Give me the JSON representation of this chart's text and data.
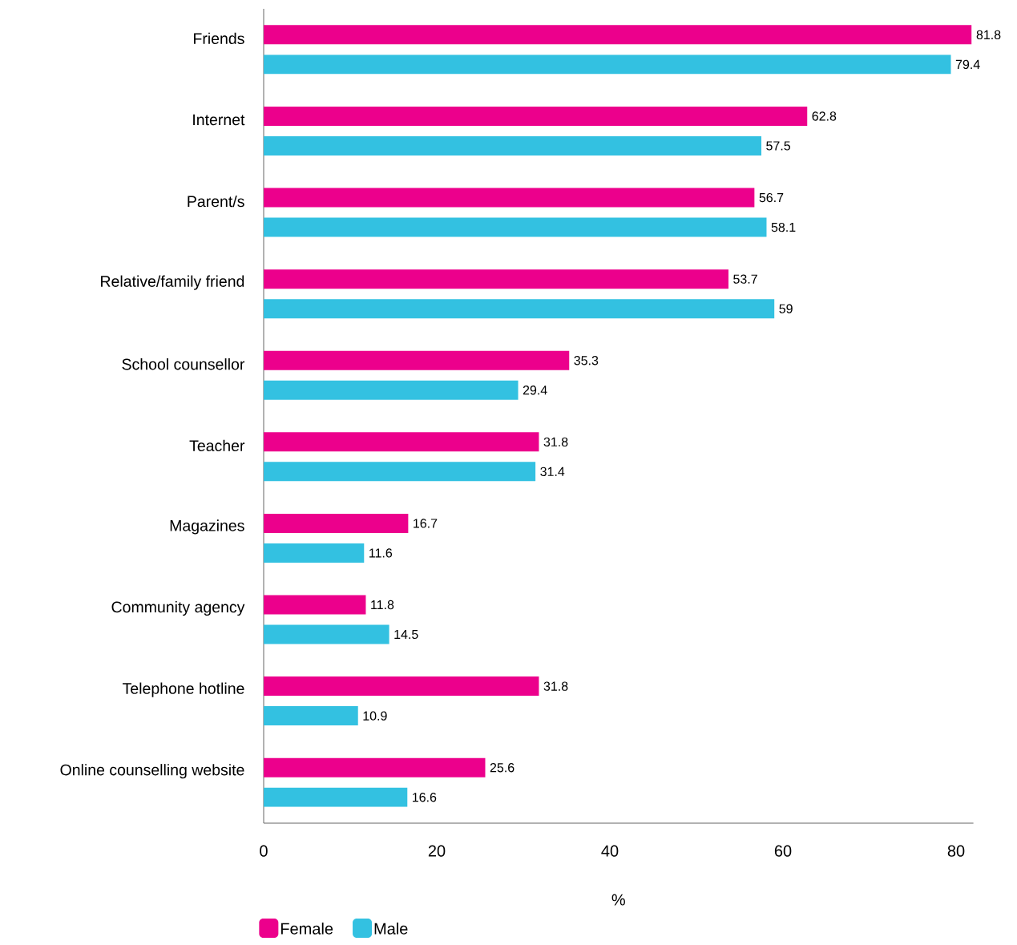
{
  "chart_data": {
    "type": "bar",
    "orientation": "horizontal",
    "xlabel": "%",
    "categories": [
      "Friends",
      "Internet",
      "Parent/s",
      "Relative/family friend",
      "School counsellor",
      "Teacher",
      "Magazines",
      "Community agency",
      "Telephone hotline",
      "Online counselling website"
    ],
    "series": [
      {
        "name": "Female",
        "color": "#ec008c",
        "values": [
          81.8,
          62.8,
          56.7,
          53.7,
          35.3,
          31.8,
          16.7,
          11.8,
          31.8,
          25.6
        ]
      },
      {
        "name": "Male",
        "color": "#33c1e1",
        "values": [
          79.4,
          57.5,
          58.1,
          59,
          29.4,
          31.4,
          11.6,
          14.5,
          10.9,
          16.6
        ]
      }
    ],
    "xlim": [
      0,
      82
    ],
    "xticks": [
      0,
      20,
      40,
      60,
      80
    ],
    "data_labels": true,
    "grid": false,
    "legend": "bottom"
  }
}
